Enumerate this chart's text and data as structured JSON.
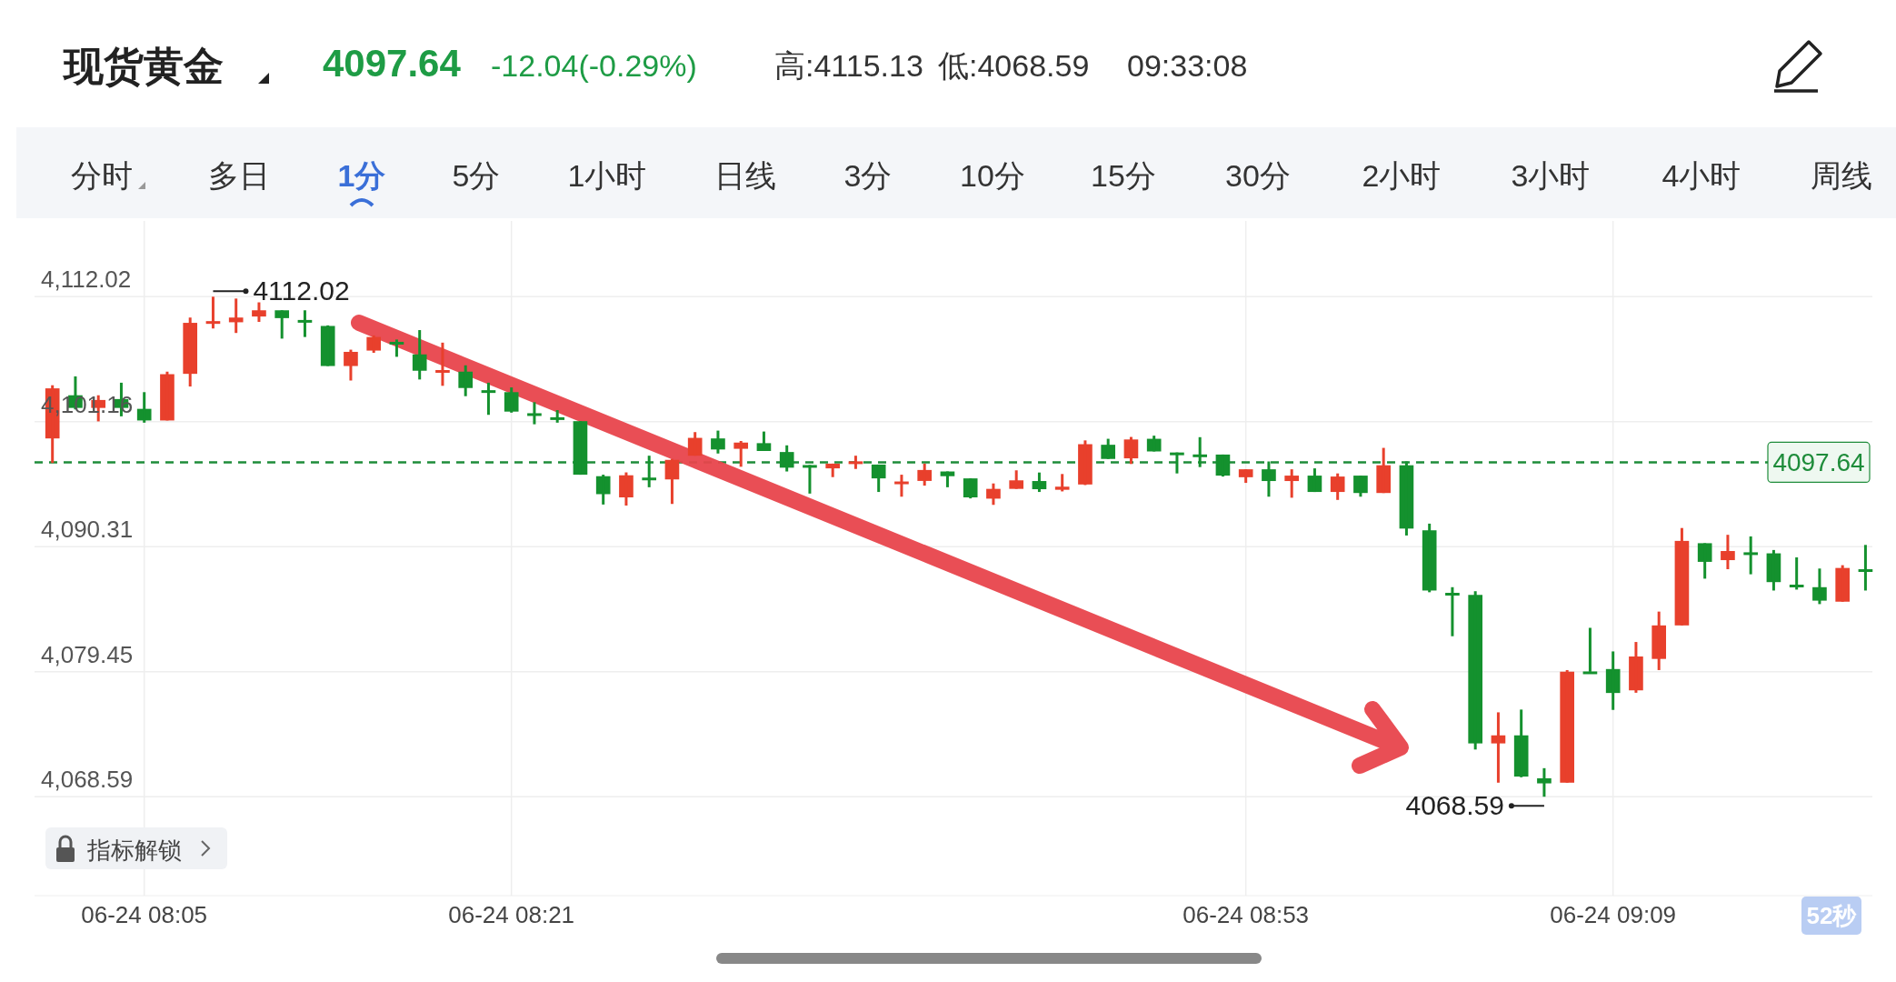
{
  "chart_data": {
    "type": "candlestick",
    "title": "现货黄金",
    "annotations": [
      "4097.64",
      "-12.04(-0.29%)",
      "高:4115.13",
      "低:4068.59",
      "09:33:08",
      "分时",
      "多日",
      "1分",
      "5分",
      "1小时",
      "日线",
      "3分",
      "10分",
      "15分",
      "30分",
      "2小时",
      "3小时",
      "4小时",
      "周线",
      "指标解锁",
      "52秒",
      "4112.02",
      "4068.59"
    ],
    "categories": [
      null,
      null,
      null,
      null,
      "06-24 08:05",
      null,
      null,
      null,
      null,
      null,
      null,
      null,
      null,
      null,
      null,
      null,
      null,
      null,
      null,
      null,
      "06-24 08:21",
      null,
      null,
      null,
      null,
      null,
      null,
      null,
      null,
      null,
      null,
      null,
      null,
      null,
      null,
      null,
      null,
      null,
      null,
      null,
      null,
      null,
      null,
      null,
      null,
      null,
      null,
      null,
      null,
      null,
      null,
      null,
      "06-24 08:53",
      null,
      null,
      null,
      null,
      null,
      null,
      null,
      null,
      null,
      null,
      null,
      null,
      null,
      null,
      null,
      "06-24 09:09",
      null,
      null,
      null,
      null,
      null,
      null,
      null,
      null,
      null,
      null,
      null
    ],
    "ohlc": [
      [
        4099.71,
        4104.33,
        4097.58,
        4104.06
      ],
      [
        4103.46,
        4105.1,
        4102.23,
        4102.36
      ],
      [
        4102.36,
        4103.46,
        4101.19,
        4103.05
      ],
      [
        4103.13,
        4104.55,
        4101.63,
        4102.36
      ],
      [
        4102.28,
        4103.73,
        4101.08,
        4101.27
      ],
      [
        4101.27,
        4105.51,
        4101.27,
        4105.29
      ],
      [
        4105.32,
        4110.21,
        4104.22,
        4109.75
      ],
      [
        4109.85,
        4112.02,
        4109.26,
        4109.9
      ],
      [
        4109.8,
        4111.86,
        4108.87,
        4110.21
      ],
      [
        4110.3,
        4111.53,
        4109.83,
        4110.84
      ],
      [
        4110.84,
        4110.84,
        4108.38,
        4110.16
      ],
      [
        4110.0,
        4110.84,
        4108.52,
        4109.97
      ],
      [
        4109.48,
        4109.53,
        4106.0,
        4106.0
      ],
      [
        4106.0,
        4107.42,
        4104.74,
        4107.23
      ],
      [
        4107.34,
        4108.66,
        4107.15,
        4108.52
      ],
      [
        4108.1,
        4108.3,
        4106.8,
        4107.9
      ],
      [
        4107.01,
        4109.12,
        4104.83,
        4105.59
      ],
      [
        4105.63,
        4108.03,
        4104.28,
        4105.65
      ],
      [
        4105.51,
        4106.06,
        4103.38,
        4104.09
      ],
      [
        4103.9,
        4104.55,
        4101.76,
        4103.87
      ],
      [
        4103.73,
        4104.14,
        4101.95,
        4102.04
      ],
      [
        4101.9,
        4102.86,
        4100.94,
        4101.88
      ],
      [
        4101.55,
        4102.17,
        4101.08,
        4101.52
      ],
      [
        4101.21,
        4101.21,
        4096.56,
        4096.56
      ],
      [
        4096.43,
        4096.56,
        4093.97,
        4094.87
      ],
      [
        4094.59,
        4096.76,
        4093.88,
        4096.51
      ],
      [
        4096.31,
        4098.21,
        4095.47,
        4096.28
      ],
      [
        4096.15,
        4097.93,
        4094.02,
        4097.85
      ],
      [
        4098.21,
        4100.26,
        4098.21,
        4099.76
      ],
      [
        4099.71,
        4100.39,
        4098.4,
        4098.75
      ],
      [
        4098.81,
        4099.49,
        4097.25,
        4099.35
      ],
      [
        4099.3,
        4100.31,
        4098.62,
        4098.62
      ],
      [
        4098.53,
        4099.11,
        4096.84,
        4097.17
      ],
      [
        4097.4,
        4097.4,
        4094.92,
        4097.38
      ],
      [
        4097.11,
        4097.52,
        4096.35,
        4097.52
      ],
      [
        4097.7,
        4098.21,
        4097.06,
        4097.72
      ],
      [
        4097.44,
        4097.44,
        4095.06,
        4096.24
      ],
      [
        4095.96,
        4096.56,
        4094.65,
        4095.97
      ],
      [
        4096.02,
        4097.52,
        4095.61,
        4096.97
      ],
      [
        4096.84,
        4096.84,
        4095.47,
        4096.43
      ],
      [
        4096.24,
        4096.24,
        4094.5,
        4094.59
      ],
      [
        4094.48,
        4095.8,
        4093.94,
        4095.33
      ],
      [
        4095.33,
        4096.94,
        4095.33,
        4096.07
      ],
      [
        4096.01,
        4096.75,
        4095.06,
        4095.3
      ],
      [
        4095.25,
        4096.62,
        4095.11,
        4095.52
      ],
      [
        4095.71,
        4099.54,
        4095.66,
        4099.21
      ],
      [
        4099.16,
        4099.68,
        4097.93,
        4097.93
      ],
      [
        4097.98,
        4099.84,
        4097.49,
        4099.62
      ],
      [
        4099.68,
        4099.95,
        4098.58,
        4098.58
      ],
      [
        4098.49,
        4098.49,
        4096.67,
        4098.47
      ],
      [
        4098.32,
        4099.82,
        4097.22,
        4098.31
      ],
      [
        4098.31,
        4098.31,
        4096.4,
        4096.48
      ],
      [
        4096.34,
        4097.03,
        4095.85,
        4097.03
      ],
      [
        4097.03,
        4097.71,
        4094.65,
        4096.01
      ],
      [
        4096.01,
        4097.03,
        4094.56,
        4096.48
      ],
      [
        4096.48,
        4097.11,
        4095.06,
        4095.06
      ],
      [
        4095.06,
        4096.67,
        4094.37,
        4096.4
      ],
      [
        4096.48,
        4096.48,
        4094.65,
        4094.97
      ],
      [
        4094.97,
        4098.89,
        4094.97,
        4097.38
      ],
      [
        4097.38,
        4097.71,
        4091.28,
        4091.88
      ],
      [
        4091.73,
        4092.31,
        4086.35,
        4086.5
      ],
      [
        4086.3,
        4086.79,
        4082.53,
        4086.29
      ],
      [
        4086.12,
        4086.44,
        4072.69,
        4073.22
      ],
      [
        4073.22,
        4075.92,
        4069.81,
        4073.92
      ],
      [
        4073.92,
        4076.16,
        4070.28,
        4070.34
      ],
      [
        4070.19,
        4071.07,
        4068.59,
        4069.75
      ],
      [
        4069.81,
        4079.59,
        4069.81,
        4079.45
      ],
      [
        4079.47,
        4083.26,
        4079.44,
        4079.44
      ],
      [
        4079.68,
        4081.21,
        4076.13,
        4077.6
      ],
      [
        4077.83,
        4082.03,
        4077.62,
        4080.77
      ],
      [
        4080.56,
        4084.67,
        4079.59,
        4083.47
      ],
      [
        4083.47,
        4091.93,
        4083.47,
        4090.81
      ],
      [
        4090.61,
        4090.61,
        4087.53,
        4088.99
      ],
      [
        4089.14,
        4091.34,
        4088.35,
        4089.93
      ],
      [
        4089.82,
        4091.2,
        4087.91,
        4089.8
      ],
      [
        4089.73,
        4090.02,
        4086.5,
        4087.23
      ],
      [
        4087.01,
        4089.38,
        4086.58,
        4086.99
      ],
      [
        4086.79,
        4088.41,
        4085.32,
        4085.62
      ],
      [
        4085.53,
        4088.7,
        4085.53,
        4088.46
      ],
      [
        4088.35,
        4090.46,
        4086.5,
        4088.33
      ]
    ],
    "ylim": [
      4060.0,
      4118.6
    ],
    "yticks": [
      {
        "value": 4068.59,
        "label": "4,068.59"
      },
      {
        "value": 4079.45,
        "label": "4,079.45"
      },
      {
        "value": 4090.31,
        "label": "4,090.31"
      },
      {
        "value": 4101.16,
        "label": "4,101.16"
      },
      {
        "value": 4112.02,
        "label": "4,112.02"
      }
    ],
    "grid": true,
    "ref_lines": [
      {
        "axis": "y",
        "value": 4097.64,
        "label": "4097.64",
        "color": "#1e8c3a",
        "line_style": "dashed"
      }
    ]
  }
}
